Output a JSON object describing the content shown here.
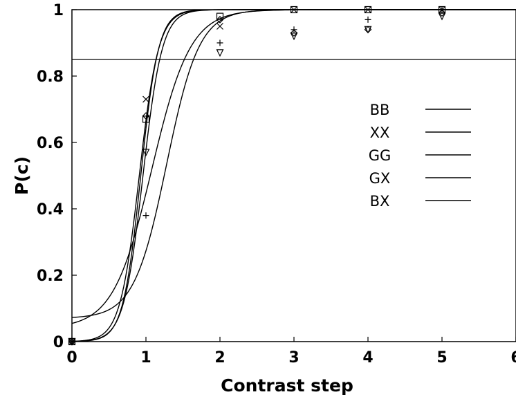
{
  "chart_data": {
    "type": "line",
    "xlabel": "Contrast step",
    "ylabel": "P(c)",
    "xlim": [
      0,
      6
    ],
    "ylim": [
      0,
      1
    ],
    "x_ticks": [
      "0",
      "1",
      "2",
      "3",
      "4",
      "5",
      "6"
    ],
    "y_ticks": [
      "0",
      "0.2",
      "0.4",
      "0.6",
      "0.8",
      "1"
    ],
    "threshold": 0.85,
    "grid": false,
    "legend_position": "center-right",
    "series": [
      {
        "name": "BB",
        "marker": "square",
        "x": [
          0,
          1,
          2,
          3,
          4,
          5
        ],
        "y": [
          0,
          0.67,
          0.98,
          1.0,
          1.0,
          1.0
        ],
        "fit": {
          "mu": 0.93,
          "s": 0.12,
          "gamma": 0
        }
      },
      {
        "name": "XX",
        "marker": "x",
        "x": [
          0,
          1,
          2,
          3,
          4,
          5
        ],
        "y": [
          0,
          0.73,
          0.95,
          1.0,
          1.0,
          1.0
        ],
        "fit": {
          "mu": 0.91,
          "s": 0.13,
          "gamma": 0
        }
      },
      {
        "name": "GG",
        "marker": "diamond",
        "x": [
          0,
          1,
          2,
          3,
          4,
          5
        ],
        "y": [
          0,
          0.68,
          0.97,
          0.93,
          0.94,
          0.99
        ],
        "fit": {
          "mu": 0.96,
          "s": 0.13,
          "gamma": 0
        }
      },
      {
        "name": "GX",
        "marker": "triangle",
        "x": [
          0,
          1,
          2,
          3,
          4,
          5
        ],
        "y": [
          0,
          0.57,
          0.87,
          0.92,
          0.94,
          0.98
        ],
        "fit": {
          "mu": 1.08,
          "s": 0.26,
          "gamma": 0.04
        }
      },
      {
        "name": "BX",
        "marker": "plus",
        "x": [
          0,
          1,
          2,
          3,
          4,
          5
        ],
        "y": [
          0,
          0.38,
          0.9,
          0.94,
          0.97,
          1.0
        ],
        "fit": {
          "mu": 1.28,
          "s": 0.22,
          "gamma": 0.07
        }
      }
    ]
  }
}
